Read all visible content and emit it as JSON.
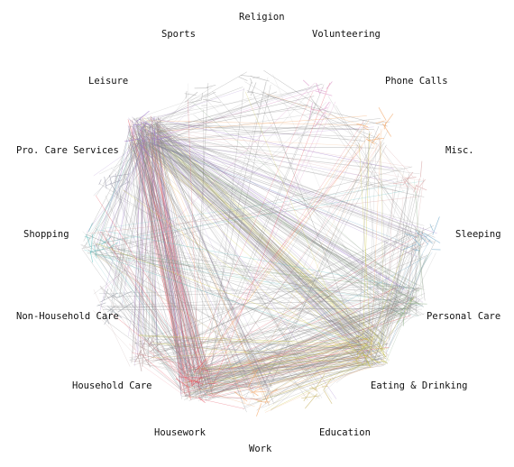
{
  "nodes": [
    {
      "label": "Religion",
      "color": "#b0b0b0"
    },
    {
      "label": "Volunteering",
      "color": "#d98ec5"
    },
    {
      "label": "Phone Calls",
      "color": "#f2a25f"
    },
    {
      "label": "Misc.",
      "color": "#d6a3a3"
    },
    {
      "label": "Sleeping",
      "color": "#6fa8c9"
    },
    {
      "label": "Personal Care",
      "color": "#8fb08a"
    },
    {
      "label": "Eating & Drinking",
      "color": "#c9c23b"
    },
    {
      "label": "Education",
      "color": "#c9b56a"
    },
    {
      "label": "Work",
      "color": "#f2a25f"
    },
    {
      "label": "Housework",
      "color": "#e5525f"
    },
    {
      "label": "Household Care",
      "color": "#b09090"
    },
    {
      "label": "Non-Household Care",
      "color": "#9aa0a8"
    },
    {
      "label": "Shopping",
      "color": "#66c2c2"
    },
    {
      "label": "Pro. Care Services",
      "color": "#a0a0b0"
    },
    {
      "label": "Leisure",
      "color": "#9a74c8"
    },
    {
      "label": "Sports",
      "color": "#b0b0b0"
    }
  ],
  "flows": [
    {
      "from": 14,
      "to": 9,
      "weight": 60
    },
    {
      "from": 14,
      "to": 6,
      "weight": 55
    },
    {
      "from": 9,
      "to": 6,
      "weight": 45
    },
    {
      "from": 14,
      "to": 5,
      "weight": 30
    },
    {
      "from": 9,
      "to": 5,
      "weight": 22
    },
    {
      "from": 14,
      "to": 10,
      "weight": 18
    },
    {
      "from": 14,
      "to": 8,
      "weight": 16
    },
    {
      "from": 6,
      "to": 8,
      "weight": 14
    },
    {
      "from": 12,
      "to": 14,
      "weight": 14
    },
    {
      "from": 12,
      "to": 5,
      "weight": 10
    },
    {
      "from": 12,
      "to": 9,
      "weight": 10
    },
    {
      "from": 14,
      "to": 4,
      "weight": 12
    },
    {
      "from": 9,
      "to": 10,
      "weight": 12
    },
    {
      "from": 5,
      "to": 6,
      "weight": 12
    },
    {
      "from": 14,
      "to": 2,
      "weight": 8
    },
    {
      "from": 14,
      "to": 3,
      "weight": 8
    },
    {
      "from": 14,
      "to": 1,
      "weight": 6
    },
    {
      "from": 14,
      "to": 0,
      "weight": 6
    },
    {
      "from": 14,
      "to": 15,
      "weight": 5
    },
    {
      "from": 14,
      "to": 13,
      "weight": 6
    },
    {
      "from": 14,
      "to": 11,
      "weight": 8
    },
    {
      "from": 14,
      "to": 7,
      "weight": 6
    },
    {
      "from": 9,
      "to": 8,
      "weight": 8
    },
    {
      "from": 9,
      "to": 4,
      "weight": 8
    },
    {
      "from": 9,
      "to": 2,
      "weight": 6
    },
    {
      "from": 9,
      "to": 1,
      "weight": 5
    },
    {
      "from": 9,
      "to": 12,
      "weight": 6
    },
    {
      "from": 9,
      "to": 11,
      "weight": 6
    },
    {
      "from": 6,
      "to": 4,
      "weight": 8
    },
    {
      "from": 6,
      "to": 2,
      "weight": 6
    },
    {
      "from": 6,
      "to": 3,
      "weight": 6
    },
    {
      "from": 6,
      "to": 10,
      "weight": 8
    },
    {
      "from": 6,
      "to": 12,
      "weight": 6
    },
    {
      "from": 6,
      "to": 7,
      "weight": 5
    },
    {
      "from": 5,
      "to": 4,
      "weight": 8
    },
    {
      "from": 5,
      "to": 3,
      "weight": 5
    },
    {
      "from": 5,
      "to": 10,
      "weight": 6
    },
    {
      "from": 5,
      "to": 8,
      "weight": 5
    },
    {
      "from": 2,
      "to": 0,
      "weight": 4
    },
    {
      "from": 1,
      "to": 11,
      "weight": 3
    },
    {
      "from": 1,
      "to": 4,
      "weight": 3
    },
    {
      "from": 3,
      "to": 12,
      "weight": 4
    },
    {
      "from": 13,
      "to": 9,
      "weight": 4
    },
    {
      "from": 13,
      "to": 6,
      "weight": 4
    },
    {
      "from": 15,
      "to": 9,
      "weight": 3
    },
    {
      "from": 15,
      "to": 5,
      "weight": 3
    },
    {
      "from": 0,
      "to": 9,
      "weight": 3
    },
    {
      "from": 0,
      "to": 6,
      "weight": 3
    },
    {
      "from": 7,
      "to": 12,
      "weight": 3
    },
    {
      "from": 11,
      "to": 5,
      "weight": 4
    },
    {
      "from": 11,
      "to": 10,
      "weight": 4
    },
    {
      "from": 4,
      "to": 10,
      "weight": 4
    },
    {
      "from": 8,
      "to": 2,
      "weight": 4
    },
    {
      "from": 2,
      "to": 3,
      "weight": 3
    }
  ]
}
